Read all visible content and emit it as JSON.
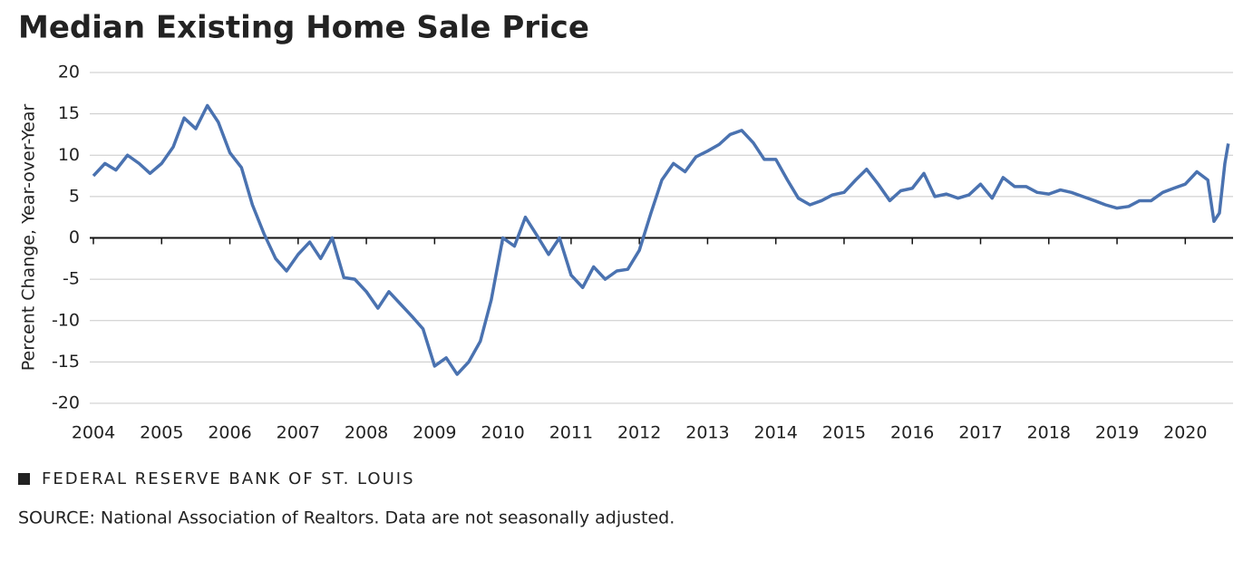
{
  "chart_data": {
    "type": "line",
    "title": "Median Existing Home Sale Price",
    "y_label": "Percent Change, Year-over-Year",
    "brand": "FEDERAL RESERVE BANK OF ST. LOUIS",
    "source": "SOURCE: National Association of Realtors. Data are not seasonally adjusted.",
    "x": [
      2004.0,
      2004.17,
      2004.33,
      2004.5,
      2004.67,
      2004.83,
      2005.0,
      2005.17,
      2005.33,
      2005.5,
      2005.67,
      2005.83,
      2006.0,
      2006.17,
      2006.33,
      2006.5,
      2006.67,
      2006.83,
      2007.0,
      2007.17,
      2007.33,
      2007.5,
      2007.67,
      2007.83,
      2008.0,
      2008.17,
      2008.33,
      2008.5,
      2008.67,
      2008.83,
      2009.0,
      2009.17,
      2009.33,
      2009.5,
      2009.67,
      2009.83,
      2010.0,
      2010.17,
      2010.33,
      2010.5,
      2010.67,
      2010.83,
      2011.0,
      2011.17,
      2011.33,
      2011.5,
      2011.67,
      2011.83,
      2012.0,
      2012.17,
      2012.33,
      2012.5,
      2012.67,
      2012.83,
      2013.0,
      2013.17,
      2013.33,
      2013.5,
      2013.67,
      2013.83,
      2014.0,
      2014.17,
      2014.33,
      2014.5,
      2014.67,
      2014.83,
      2015.0,
      2015.17,
      2015.33,
      2015.5,
      2015.67,
      2015.83,
      2016.0,
      2016.17,
      2016.33,
      2016.5,
      2016.67,
      2016.83,
      2017.0,
      2017.17,
      2017.33,
      2017.5,
      2017.67,
      2017.83,
      2018.0,
      2018.17,
      2018.33,
      2018.5,
      2018.67,
      2018.83,
      2019.0,
      2019.17,
      2019.33,
      2019.5,
      2019.67,
      2019.83,
      2020.0,
      2020.17,
      2020.33,
      2020.42,
      2020.5,
      2020.58,
      2020.63
    ],
    "series": [
      {
        "name": "Median Existing Home Sale Price",
        "color": "#4a72b0",
        "values": [
          7.5,
          9,
          8.2,
          10,
          9,
          7.8,
          9,
          11,
          14.5,
          13.2,
          16,
          14,
          10.3,
          8.5,
          4,
          0.5,
          -2.5,
          -4,
          -2,
          -0.5,
          -2.5,
          0,
          -4.8,
          -5,
          -6.5,
          -8.5,
          -6.5,
          -8,
          -9.5,
          -11,
          -15.5,
          -14.5,
          -16.5,
          -15,
          -12.5,
          -7.5,
          0,
          -1,
          2.5,
          0.3,
          -2,
          0,
          -4.5,
          -6,
          -3.5,
          -5,
          -4,
          -3.8,
          -1.5,
          3,
          7,
          9,
          8,
          9.8,
          10.5,
          11.3,
          12.5,
          13,
          11.5,
          9.5,
          9.5,
          7,
          4.8,
          4,
          4.5,
          5.2,
          5.5,
          7,
          8.3,
          6.5,
          4.5,
          5.7,
          6,
          7.8,
          5,
          5.3,
          4.8,
          5.2,
          6.5,
          4.8,
          7.3,
          6.2,
          6.2,
          5.5,
          5.3,
          5.8,
          5.5,
          5,
          4.5,
          4,
          3.6,
          3.8,
          4.5,
          4.5,
          5.5,
          6,
          6.5,
          8,
          7,
          2,
          3,
          9,
          11.4
        ]
      }
    ],
    "xlim": [
      2004,
      2020.7
    ],
    "xticks": [
      2004,
      2005,
      2006,
      2007,
      2008,
      2009,
      2010,
      2011,
      2012,
      2013,
      2014,
      2015,
      2016,
      2017,
      2018,
      2019,
      2020
    ],
    "ylim": [
      -20,
      20
    ],
    "yticks": [
      -20,
      -15,
      -10,
      -5,
      0,
      5,
      10,
      15,
      20
    ],
    "grid": true
  }
}
